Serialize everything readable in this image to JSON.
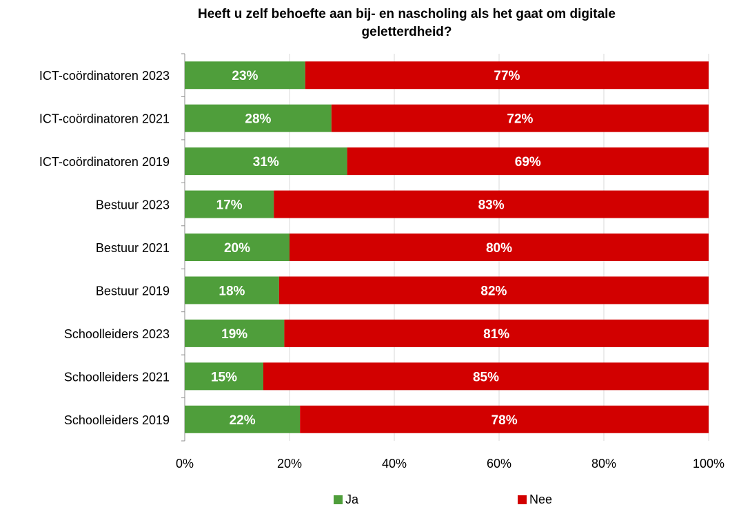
{
  "chart_data": {
    "type": "bar",
    "orientation": "horizontal",
    "stacked": "percent",
    "title_lines": [
      "Heeft u zelf behoefte aan bij- en nascholing als het gaat om digitale",
      "geletterdheid?"
    ],
    "categories": [
      "ICT-coördinatoren 2023",
      "ICT-coördinatoren 2021",
      "ICT-coördinatoren 2019",
      "Bestuur 2023",
      "Bestuur 2021",
      "Bestuur 2019",
      "Schoolleiders 2023",
      "Schoolleiders 2021",
      "Schoolleiders 2019"
    ],
    "series": [
      {
        "name": "Ja",
        "color": "#4f9e3b",
        "values": [
          23,
          28,
          31,
          17,
          20,
          18,
          19,
          15,
          22
        ],
        "labels": [
          "23%",
          "28%",
          "31%",
          "17%",
          "20%",
          "18%",
          "19%",
          "15%",
          "22%"
        ]
      },
      {
        "name": "Nee",
        "color": "#d20000",
        "values": [
          77,
          72,
          69,
          83,
          80,
          82,
          81,
          85,
          78
        ],
        "labels": [
          "77%",
          "72%",
          "69%",
          "83%",
          "80%",
          "82%",
          "81%",
          "85%",
          "78%"
        ]
      }
    ],
    "xlim": [
      0,
      100
    ],
    "xticks": [
      "0%",
      "20%",
      "40%",
      "60%",
      "80%",
      "100%"
    ],
    "grid": true,
    "legend_position": "bottom"
  }
}
